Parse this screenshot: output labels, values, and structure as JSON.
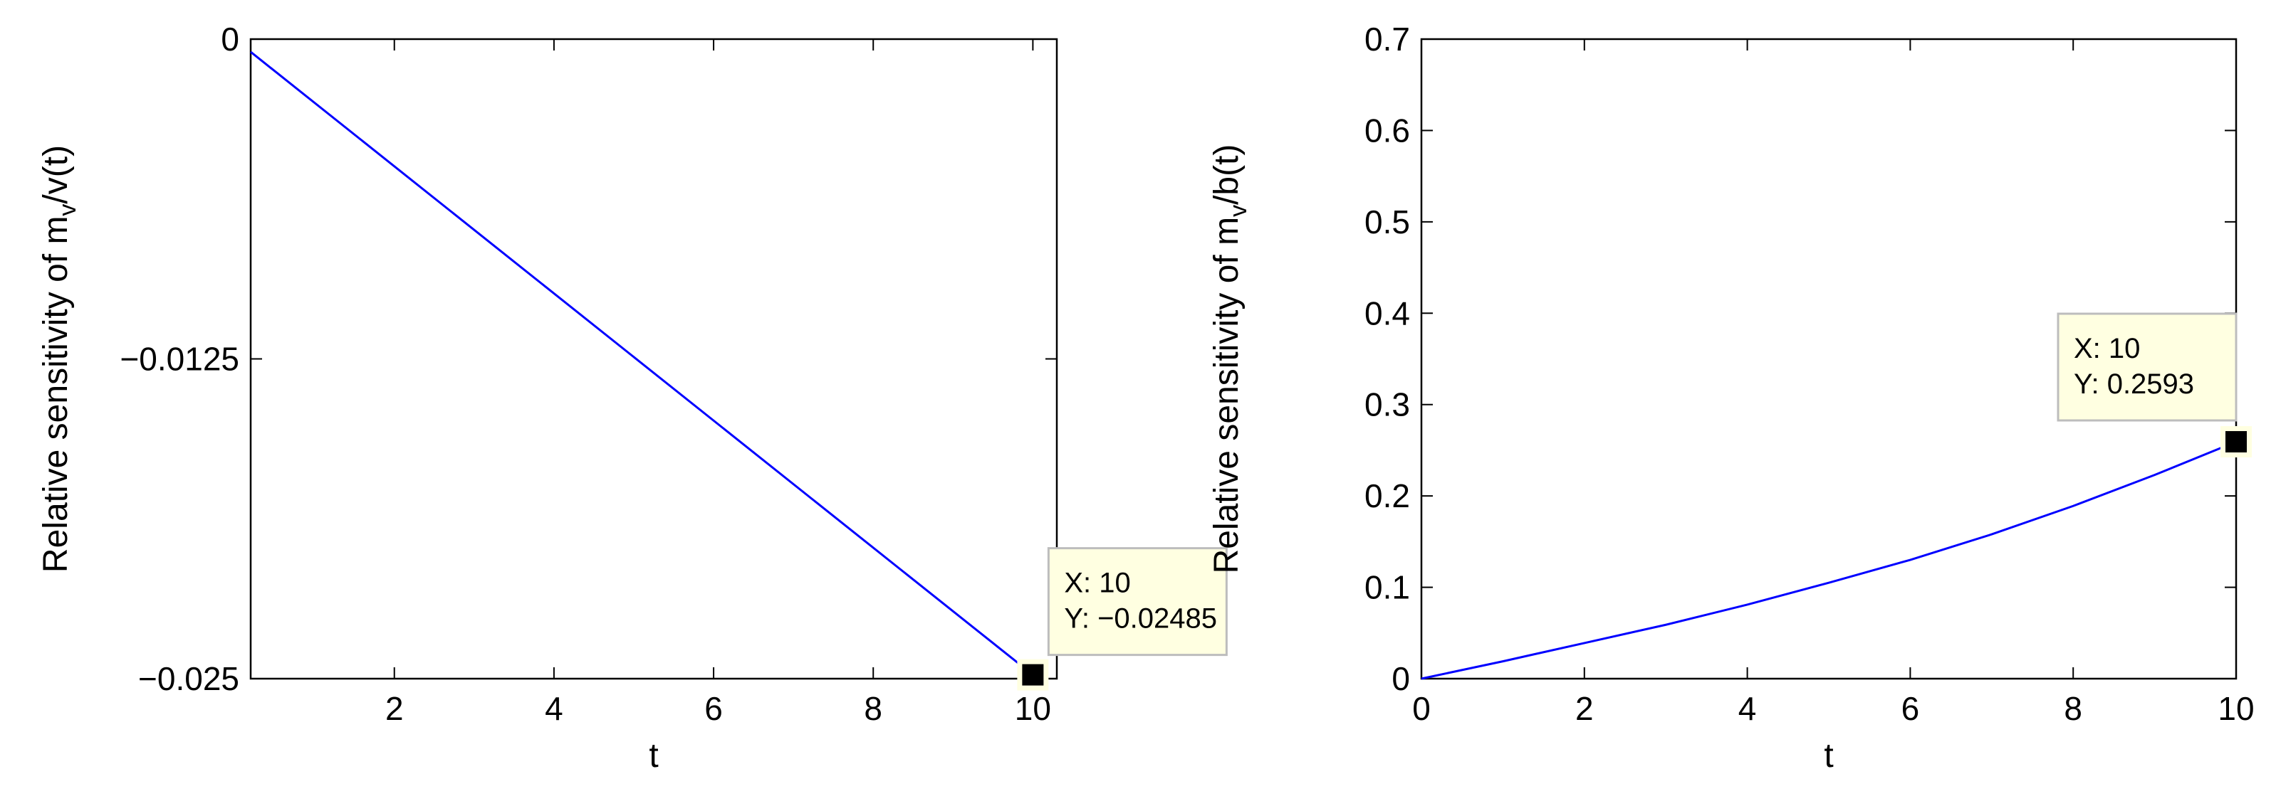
{
  "chart_data": [
    {
      "type": "line",
      "xlabel": "t",
      "ylabel": "Relative sensitivity of m_v/v(t)",
      "ylabel_parts": [
        "Relative sensitivity of m",
        "v",
        "/v(t)"
      ],
      "xlim": [
        0.2,
        10.3
      ],
      "ylim": [
        -0.025,
        0
      ],
      "xticks": [
        2,
        4,
        6,
        8,
        10
      ],
      "xtick_labels": [
        "2",
        "4",
        "6",
        "8",
        "10"
      ],
      "yticks": [
        -0.025,
        -0.0125,
        0
      ],
      "ytick_labels": [
        "−0.025",
        "−0.0125",
        "0"
      ],
      "grid": false,
      "series": [
        {
          "color": "#0000ff",
          "x": [
            0.2,
            10
          ],
          "y": [
            -0.0005,
            -0.02485
          ]
        }
      ],
      "datatip": {
        "x": 10,
        "y": -0.02485,
        "x_text": "X: 10",
        "y_text": "Y: −0.02485",
        "placement": "right"
      }
    },
    {
      "type": "line",
      "xlabel": "t",
      "ylabel": "Relative sensitivity of m_v/b(t)",
      "ylabel_parts": [
        "Relative sensitivity of m",
        "v",
        "/b(t)"
      ],
      "xlim": [
        0,
        10
      ],
      "ylim": [
        0,
        0.7
      ],
      "xticks": [
        0,
        2,
        4,
        6,
        8,
        10
      ],
      "xtick_labels": [
        "0",
        "2",
        "4",
        "6",
        "8",
        "10"
      ],
      "yticks": [
        0,
        0.1,
        0.2,
        0.3,
        0.4,
        0.5,
        0.6,
        0.7
      ],
      "ytick_labels": [
        "0",
        "0.1",
        "0.2",
        "0.3",
        "0.4",
        "0.5",
        "0.6",
        "0.7"
      ],
      "grid": false,
      "series": [
        {
          "color": "#0000ff",
          "x": [
            0,
            1,
            2,
            3,
            4,
            5,
            6,
            7,
            8,
            9,
            10
          ],
          "y": [
            0,
            0.019,
            0.039,
            0.059,
            0.081,
            0.105,
            0.13,
            0.158,
            0.189,
            0.223,
            0.2593
          ]
        }
      ],
      "datatip": {
        "x": 10,
        "y": 0.2593,
        "x_text": "X: 10",
        "y_text": "Y: 0.2593",
        "placement": "top-left"
      }
    }
  ]
}
